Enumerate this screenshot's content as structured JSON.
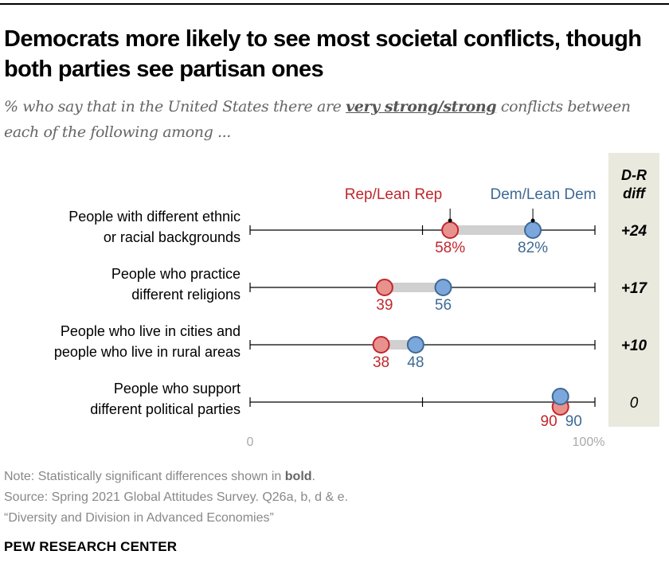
{
  "title": "Democrats more likely to see most societal conflicts, though both parties see partisan ones",
  "subtitle_pre": "% who say that in the United States there are ",
  "subtitle_emph": "very strong/strong",
  "subtitle_post": " conflicts between each of the following among ...",
  "chart_data": {
    "type": "dot",
    "xlim": [
      0,
      100
    ],
    "tick_labels": [
      "0",
      "100%"
    ],
    "series": [
      {
        "name": "Rep/Lean Rep",
        "color": "#c1272d",
        "fill": "#e8928e",
        "values": [
          58,
          39,
          38,
          90
        ],
        "labels": [
          "58%",
          "39",
          "38",
          "90"
        ]
      },
      {
        "name": "Dem/Lean Dem",
        "color": "#3e6a94",
        "fill": "#7ba7dc",
        "values": [
          82,
          56,
          48,
          90
        ],
        "labels": [
          "82%",
          "56",
          "48",
          "90"
        ]
      }
    ],
    "categories": [
      [
        "People with different ethnic",
        "or racial backgrounds"
      ],
      [
        "People who practice",
        "different religions"
      ],
      [
        "People who live in cities and",
        "people who live in rural areas"
      ],
      [
        "People who support",
        "different political parties"
      ]
    ],
    "diff_header": [
      "D-R",
      "diff"
    ],
    "diff_values": [
      "+24",
      "+17",
      "+10",
      "0"
    ],
    "diff_significant": [
      true,
      true,
      true,
      false
    ]
  },
  "notes": {
    "note_pre": "Note: Statistically significant differences shown in ",
    "note_bold": "bold",
    "note_post": ".",
    "source": "Source: Spring 2021 Global Attitudes Survey. Q26a, b, d & e.",
    "report": "“Diversity and Division in Advanced Economies”"
  },
  "brand": "PEW RESEARCH CENTER"
}
